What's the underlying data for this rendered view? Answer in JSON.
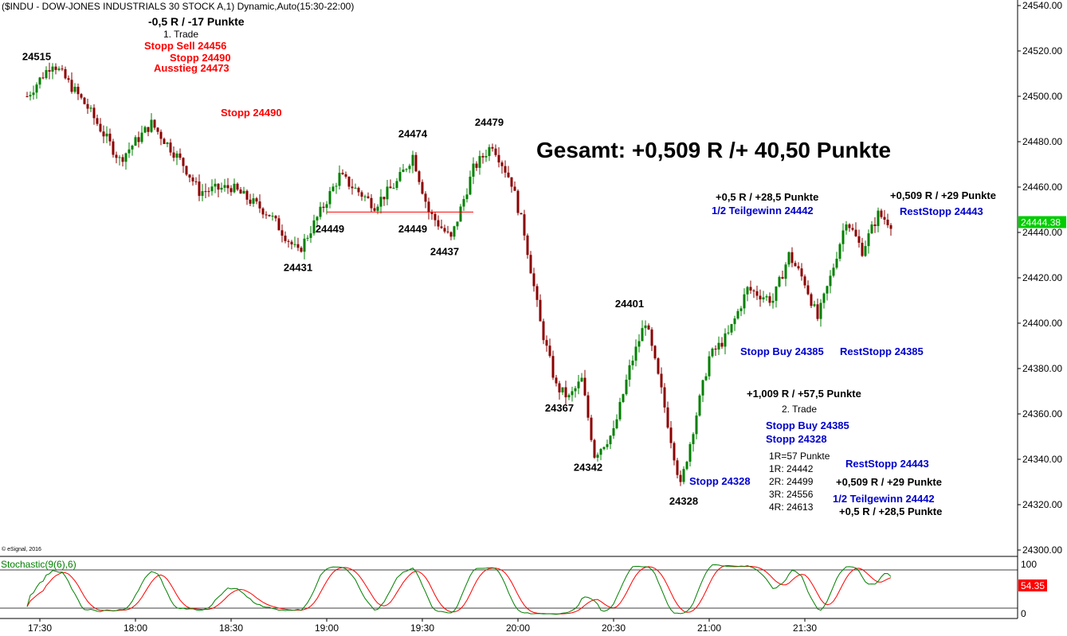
{
  "title": "($INDU - DOW-JONES INDUSTRIALS 30 STOCK A,1) Dynamic,Auto(15:30-22:00)",
  "copyright": "© eSignal, 2016",
  "colors": {
    "up_candle": "#008000",
    "down_candle": "#8b0000",
    "red_text": "#ff0000",
    "blue_text": "#0000cc",
    "black_text": "#000000",
    "last_price_bg": "#00cc00",
    "stoch_k": "#008000",
    "stoch_d": "#ff0000",
    "stoch_label": "#008000",
    "support_line": "#ff0000",
    "stoch_value_bg": "#ff0000"
  },
  "price_axis": {
    "min": 24300,
    "max": 24540,
    "ticks": [
      "24540.00",
      "24520.00",
      "24500.00",
      "24480.00",
      "24460.00",
      "24440.00",
      "24420.00",
      "24400.00",
      "24380.00",
      "24360.00",
      "24340.00",
      "24320.00",
      "24300.00"
    ],
    "last_price": "24444.38"
  },
  "time_axis": {
    "labels": [
      "17:30",
      "18:00",
      "18:30",
      "19:00",
      "19:30",
      "20:00",
      "20:30",
      "21:00",
      "21:30"
    ]
  },
  "stochastic": {
    "label": "Stochastic(9(6),6)",
    "ticks": [
      "100",
      "0"
    ],
    "value": "54.35"
  },
  "chart_data": {
    "type": "candlestick",
    "instrument": "$INDU - DOW-JONES INDUSTRIALS 30 STOCK",
    "interval": "1 minute",
    "ylim": [
      24300,
      24540
    ],
    "x_range": [
      "17:26",
      "21:58"
    ],
    "waypoints": [
      {
        "time": "17:26",
        "price": 24500
      },
      {
        "time": "17:34",
        "price": 24515
      },
      {
        "time": "17:45",
        "price": 24495
      },
      {
        "time": "17:55",
        "price": 24472
      },
      {
        "time": "18:05",
        "price": 24488
      },
      {
        "time": "18:15",
        "price": 24470
      },
      {
        "time": "18:20",
        "price": 24458
      },
      {
        "time": "18:30",
        "price": 24460
      },
      {
        "time": "18:42",
        "price": 24448
      },
      {
        "time": "18:51",
        "price": 24431
      },
      {
        "time": "18:58",
        "price": 24449
      },
      {
        "time": "19:04",
        "price": 24465
      },
      {
        "time": "19:15",
        "price": 24452
      },
      {
        "time": "19:22",
        "price": 24462
      },
      {
        "time": "19:27",
        "price": 24474
      },
      {
        "time": "19:32",
        "price": 24449
      },
      {
        "time": "19:39",
        "price": 24437
      },
      {
        "time": "19:46",
        "price": 24468
      },
      {
        "time": "19:52",
        "price": 24479
      },
      {
        "time": "19:58",
        "price": 24462
      },
      {
        "time": "20:02",
        "price": 24440
      },
      {
        "time": "20:07",
        "price": 24400
      },
      {
        "time": "20:12",
        "price": 24372
      },
      {
        "time": "20:16",
        "price": 24367
      },
      {
        "time": "20:20",
        "price": 24375
      },
      {
        "time": "20:24",
        "price": 24342
      },
      {
        "time": "20:30",
        "price": 24352
      },
      {
        "time": "20:35",
        "price": 24380
      },
      {
        "time": "20:40",
        "price": 24401
      },
      {
        "time": "20:45",
        "price": 24370
      },
      {
        "time": "20:51",
        "price": 24328
      },
      {
        "time": "20:56",
        "price": 24360
      },
      {
        "time": "21:00",
        "price": 24385
      },
      {
        "time": "21:06",
        "price": 24395
      },
      {
        "time": "21:12",
        "price": 24415
      },
      {
        "time": "21:20",
        "price": 24410
      },
      {
        "time": "21:25",
        "price": 24430
      },
      {
        "time": "21:30",
        "price": 24418
      },
      {
        "time": "21:34",
        "price": 24402
      },
      {
        "time": "21:38",
        "price": 24420
      },
      {
        "time": "21:43",
        "price": 24446
      },
      {
        "time": "21:48",
        "price": 24432
      },
      {
        "time": "21:53",
        "price": 24448
      },
      {
        "time": "21:57",
        "price": 24444
      }
    ],
    "price_labels": [
      {
        "text": "24515",
        "time": "17:29",
        "price": 24516
      },
      {
        "text": "24431",
        "time": "18:51",
        "price": 24423
      },
      {
        "text": "24449",
        "time": "19:01",
        "price": 24440
      },
      {
        "text": "24449",
        "time": "19:27",
        "price": 24440
      },
      {
        "text": "24474",
        "time": "19:27",
        "price": 24482
      },
      {
        "text": "24437",
        "time": "19:37",
        "price": 24430
      },
      {
        "text": "24479",
        "time": "19:51",
        "price": 24487
      },
      {
        "text": "24367",
        "time": "20:13",
        "price": 24361
      },
      {
        "text": "24342",
        "time": "20:22",
        "price": 24335
      },
      {
        "text": "24401",
        "time": "20:35",
        "price": 24407
      },
      {
        "text": "24328",
        "time": "20:52",
        "price": 24320
      }
    ],
    "support_line": {
      "price": 24449,
      "from": "19:00",
      "to": "19:46"
    },
    "annotations": [
      {
        "text": "-0,5 R / -17 Punkte",
        "color": "black"
      },
      {
        "text": "1. Trade",
        "color": "black"
      },
      {
        "text": "Stopp Sell 24456",
        "color": "red"
      },
      {
        "text": "Stopp 24490",
        "color": "red"
      },
      {
        "text": "Ausstieg 24473",
        "color": "red"
      },
      {
        "text": "Stopp 24490",
        "color": "red"
      },
      {
        "text": "Gesamt: +0,509 R /+ 40,50 Punkte",
        "color": "black"
      },
      {
        "text": "+0,5 R / +28,5 Punkte",
        "color": "black"
      },
      {
        "text": "1/2 Teilgewinn 24442",
        "color": "blue"
      },
      {
        "text": "+0,509 R / +29 Punkte",
        "color": "black"
      },
      {
        "text": "RestStopp 24443",
        "color": "blue"
      },
      {
        "text": "Stopp Buy 24385",
        "color": "blue"
      },
      {
        "text": "RestStopp 24385",
        "color": "blue"
      },
      {
        "text": "+1,009 R / +57,5 Punkte",
        "color": "black"
      },
      {
        "text": "2. Trade",
        "color": "black"
      },
      {
        "text": "Stopp Buy 24385",
        "color": "blue"
      },
      {
        "text": "Stopp 24328",
        "color": "blue"
      },
      {
        "text": "1R=57 Punkte",
        "color": "black"
      },
      {
        "text": "1R: 24442",
        "color": "black"
      },
      {
        "text": "2R: 24499",
        "color": "black"
      },
      {
        "text": "3R: 24556",
        "color": "black"
      },
      {
        "text": "4R: 24613",
        "color": "black"
      },
      {
        "text": "RestStopp 24443",
        "color": "blue"
      },
      {
        "text": "+0,509 R / +29 Punkte",
        "color": "black"
      },
      {
        "text": "1/2 Teilgewinn 24442",
        "color": "blue"
      },
      {
        "text": "+0,5 R / +28,5 Punkte",
        "color": "black"
      },
      {
        "text": "Stopp 24328",
        "color": "blue"
      }
    ]
  }
}
